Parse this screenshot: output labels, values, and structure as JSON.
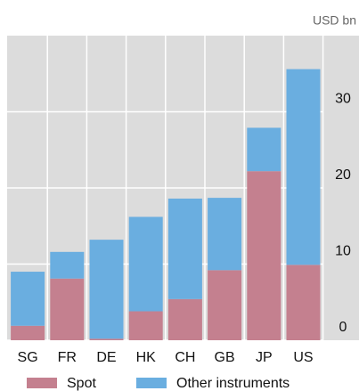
{
  "chart_data": {
    "type": "stacked_bar",
    "y_axis_label": "USD bn",
    "categories": [
      "SG",
      "FR",
      "DE",
      "HK",
      "CH",
      "GB",
      "JP",
      "US"
    ],
    "series": [
      {
        "name": "Spot",
        "color": "#c4808f",
        "values": [
          1.9,
          8.1,
          0.2,
          3.8,
          5.4,
          9.2,
          22.2,
          9.9
        ]
      },
      {
        "name": "Other instruments",
        "color": "#6aaee0",
        "values": [
          7.1,
          3.5,
          13.0,
          12.4,
          13.2,
          9.5,
          5.7,
          25.7
        ]
      }
    ],
    "ylim": [
      0,
      40
    ],
    "yticks": [
      0,
      10,
      20,
      30
    ],
    "grid": true,
    "legend": "bottom"
  }
}
